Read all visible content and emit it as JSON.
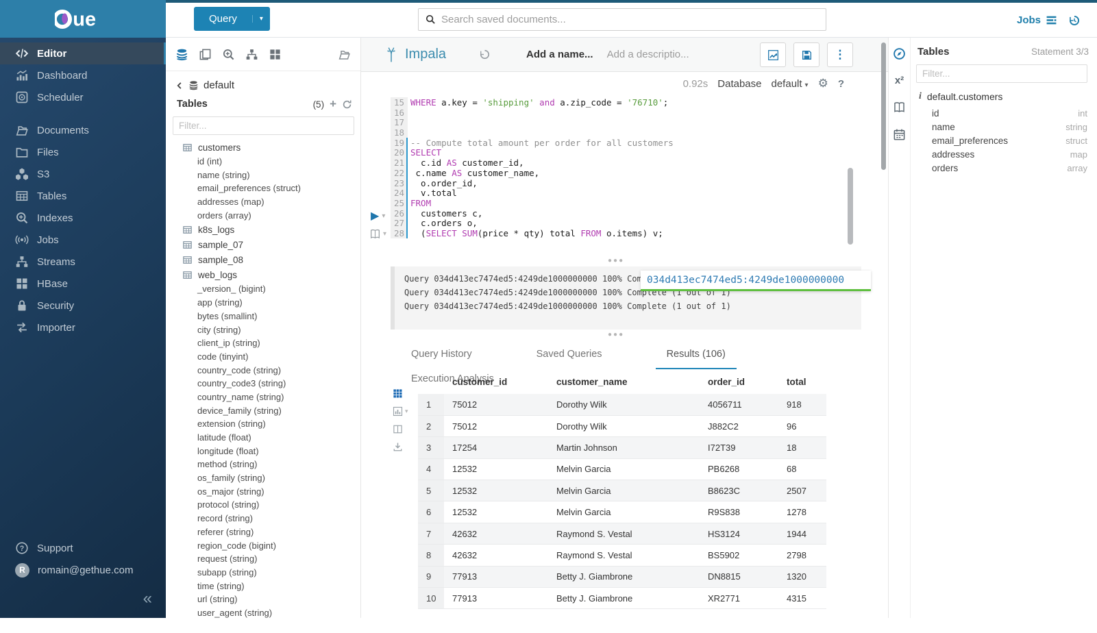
{
  "topbar": {
    "query_label": "Query",
    "search_placeholder": "Search saved documents...",
    "jobs_label": "Jobs"
  },
  "sidebar": {
    "items": [
      {
        "label": "Editor",
        "icon": "code",
        "active": true
      },
      {
        "label": "Dashboard",
        "icon": "dashboard"
      },
      {
        "label": "Scheduler",
        "icon": "scheduler"
      },
      {
        "spacer": true
      },
      {
        "label": "Documents",
        "icon": "documents"
      },
      {
        "label": "Files",
        "icon": "files"
      },
      {
        "label": "S3",
        "icon": "s3"
      },
      {
        "label": "Tables",
        "icon": "tables"
      },
      {
        "label": "Indexes",
        "icon": "indexes"
      },
      {
        "label": "Jobs",
        "icon": "jobs"
      },
      {
        "label": "Streams",
        "icon": "streams"
      },
      {
        "label": "HBase",
        "icon": "hbase"
      },
      {
        "label": "Security",
        "icon": "security"
      },
      {
        "label": "Importer",
        "icon": "importer"
      }
    ],
    "support_label": "Support",
    "user_email": "romain@gethue.com",
    "avatar_letter": "R",
    "collapse_glyph": "«"
  },
  "left_assist": {
    "database": "default",
    "tables_label": "Tables",
    "count": "(5)",
    "filter_placeholder": "Filter...",
    "tables": [
      {
        "name": "customers",
        "columns": [
          "id (int)",
          "name (string)",
          "email_preferences (struct)",
          "addresses (map)",
          "orders (array)"
        ]
      },
      {
        "name": "k8s_logs",
        "columns": []
      },
      {
        "name": "sample_07",
        "columns": []
      },
      {
        "name": "sample_08",
        "columns": []
      },
      {
        "name": "web_logs",
        "columns": [
          "_version_ (bigint)",
          "app (string)",
          "bytes (smallint)",
          "city (string)",
          "client_ip (string)",
          "code (tinyint)",
          "country_code (string)",
          "country_code3 (string)",
          "country_name (string)",
          "device_family (string)",
          "extension (string)",
          "latitude (float)",
          "longitude (float)",
          "method (string)",
          "os_family (string)",
          "os_major (string)",
          "protocol (string)",
          "record (string)",
          "referer (string)",
          "region_code (bigint)",
          "request (string)",
          "subapp (string)",
          "time (string)",
          "url (string)",
          "user_agent (string)"
        ]
      }
    ]
  },
  "editor": {
    "engine": "Impala",
    "name_placeholder": "Add a name...",
    "description_placeholder": "Add a descriptio...",
    "exec_time": "0.92s",
    "database_label": "Database",
    "database_value": "default",
    "help_label": "?",
    "code": {
      "first_line_number": 15,
      "active_statement_from": 19,
      "lines": [
        "WHERE a.key = 'shipping' and a.zip_code = '76710';",
        "",
        "",
        "",
        "-- Compute total amount per order for all customers",
        "SELECT",
        "  c.id AS customer_id,",
        " c.name AS customer_name,",
        "  o.order_id,",
        "  v.total",
        "FROM",
        "  customers c,",
        "  c.orders o,",
        "  (SELECT SUM(price * qty) total FROM o.items) v;"
      ]
    },
    "logs": [
      "Query 034d413ec7474ed5:4249de1000000000 100% Complete (1 out of 1)",
      "Query 034d413ec7474ed5:4249de1000000000 100% Complete (1 out of 1)",
      "Query 034d413ec7474ed5:4249de1000000000 100% Complete (1 out of 1)"
    ],
    "query_id_tooltip": "034d413ec7474ed5:4249de1000000000"
  },
  "results": {
    "tabs": [
      {
        "label": "Query History"
      },
      {
        "label": "Saved Queries"
      },
      {
        "label": "Results (106)",
        "active": true
      },
      {
        "label": "Execution Analysis"
      }
    ],
    "columns": [
      "customer_id",
      "customer_name",
      "order_id",
      "total"
    ],
    "rows": [
      [
        "75012",
        "Dorothy Wilk",
        "4056711",
        "918"
      ],
      [
        "75012",
        "Dorothy Wilk",
        "J882C2",
        "96"
      ],
      [
        "17254",
        "Martin Johnson",
        "I72T39",
        "18"
      ],
      [
        "12532",
        "Melvin Garcia",
        "PB6268",
        "68"
      ],
      [
        "12532",
        "Melvin Garcia",
        "B8623C",
        "2507"
      ],
      [
        "12532",
        "Melvin Garcia",
        "R9S838",
        "1278"
      ],
      [
        "42632",
        "Raymond S. Vestal",
        "HS3124",
        "1944"
      ],
      [
        "42632",
        "Raymond S. Vestal",
        "BS5902",
        "2798"
      ],
      [
        "77913",
        "Betty J. Giambrone",
        "DN8815",
        "1320"
      ],
      [
        "77913",
        "Betty J. Giambrone",
        "XR2771",
        "4315"
      ]
    ]
  },
  "right_assist": {
    "title": "Tables",
    "statement": "Statement 3/3",
    "filter_placeholder": "Filter...",
    "table_name": "default.customers",
    "columns": [
      {
        "name": "id",
        "type": "int"
      },
      {
        "name": "name",
        "type": "string"
      },
      {
        "name": "email_preferences",
        "type": "struct"
      },
      {
        "name": "addresses",
        "type": "map"
      },
      {
        "name": "orders",
        "type": "array"
      }
    ]
  },
  "colors": {
    "accent": "#2077ad",
    "header_cyan": "#2d7fa9",
    "keyword": "#b03ab0",
    "string": "#579b3b",
    "tooltip_underline": "#5fbf3f"
  }
}
